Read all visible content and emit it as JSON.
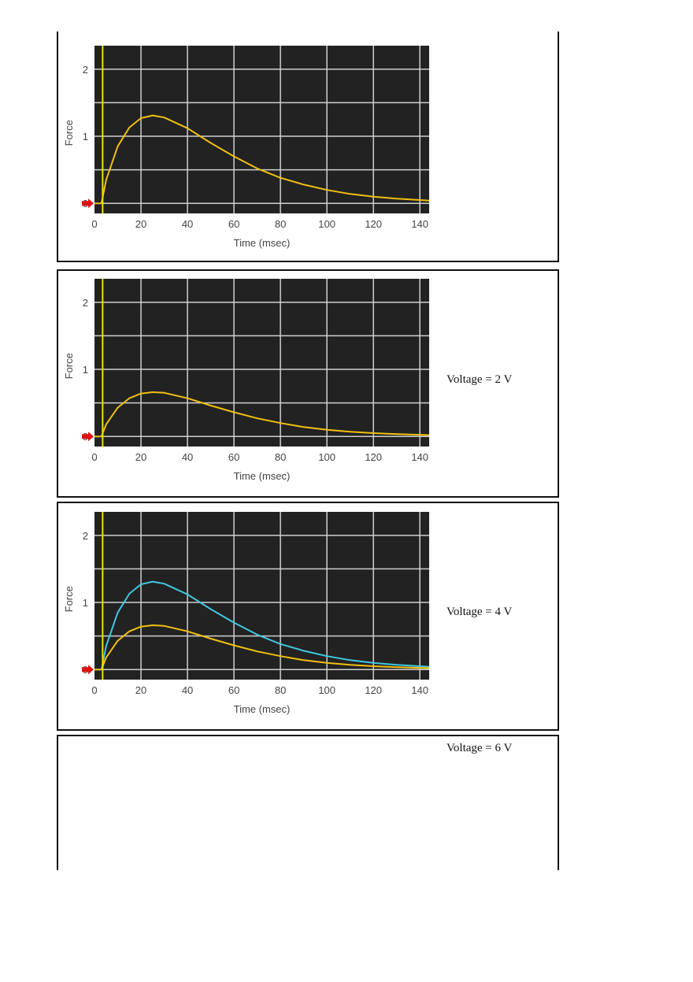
{
  "panels": [
    {
      "voltage_label": ""
    },
    {
      "voltage_label": "Voltage = 2 V"
    },
    {
      "voltage_label": "Voltage = 4 V"
    },
    {
      "voltage_label": "Voltage = 6 V"
    }
  ],
  "colors": {
    "background": "#222222",
    "grid": "#cfcfcf",
    "stimulus_marker": "#f0e000",
    "baseline_arrow": "#e01010",
    "trace_yellow": "#f0c010",
    "trace_cyan": "#40c8e0"
  },
  "chart_data": [
    {
      "type": "line",
      "xlabel": "Time (msec)",
      "ylabel": "Force",
      "xlim": [
        0,
        144
      ],
      "ylim": [
        -0.15,
        2.35
      ],
      "xticks": [
        "0",
        "20",
        "40",
        "60",
        "80",
        "100",
        "120",
        "140"
      ],
      "yticks": [
        "0",
        "1",
        "2"
      ],
      "grid": true,
      "stimulus_time": 3.5,
      "x": [
        0,
        3,
        5,
        10,
        15,
        20,
        25,
        30,
        40,
        50,
        60,
        70,
        80,
        90,
        100,
        110,
        120,
        130,
        140,
        144
      ],
      "series": [
        {
          "color": "#f0c010",
          "values": [
            0,
            0,
            0.35,
            0.85,
            1.13,
            1.27,
            1.31,
            1.28,
            1.12,
            0.9,
            0.7,
            0.52,
            0.38,
            0.28,
            0.2,
            0.14,
            0.1,
            0.07,
            0.05,
            0.04
          ]
        }
      ]
    },
    {
      "type": "line",
      "xlabel": "Time (msec)",
      "ylabel": "Force",
      "xlim": [
        0,
        144
      ],
      "ylim": [
        -0.15,
        2.35
      ],
      "xticks": [
        "0",
        "20",
        "40",
        "60",
        "80",
        "100",
        "120",
        "140"
      ],
      "yticks": [
        "0",
        "1",
        "2"
      ],
      "grid": true,
      "stimulus_time": 3.5,
      "x": [
        0,
        3,
        5,
        10,
        15,
        20,
        25,
        30,
        40,
        50,
        60,
        70,
        80,
        90,
        100,
        110,
        120,
        130,
        140,
        144
      ],
      "series": [
        {
          "color": "#f0c010",
          "values": [
            0,
            0,
            0.18,
            0.43,
            0.57,
            0.64,
            0.66,
            0.65,
            0.57,
            0.46,
            0.36,
            0.27,
            0.2,
            0.14,
            0.1,
            0.07,
            0.05,
            0.035,
            0.025,
            0.02
          ]
        }
      ]
    },
    {
      "type": "line",
      "xlabel": "Time (msec)",
      "ylabel": "Force",
      "xlim": [
        0,
        144
      ],
      "ylim": [
        -0.15,
        2.35
      ],
      "xticks": [
        "0",
        "20",
        "40",
        "60",
        "80",
        "100",
        "120",
        "140"
      ],
      "yticks": [
        "0",
        "1",
        "2"
      ],
      "grid": true,
      "stimulus_time": 3.5,
      "x": [
        0,
        3,
        5,
        10,
        15,
        20,
        25,
        30,
        40,
        50,
        60,
        70,
        80,
        90,
        100,
        110,
        120,
        130,
        140,
        144
      ],
      "series": [
        {
          "color": "#40c8e0",
          "values": [
            0,
            0,
            0.35,
            0.85,
            1.13,
            1.27,
            1.31,
            1.28,
            1.12,
            0.9,
            0.7,
            0.52,
            0.38,
            0.28,
            0.2,
            0.14,
            0.1,
            0.07,
            0.05,
            0.04
          ]
        },
        {
          "color": "#f0c010",
          "values": [
            0,
            0,
            0.18,
            0.43,
            0.57,
            0.64,
            0.66,
            0.65,
            0.57,
            0.46,
            0.36,
            0.27,
            0.2,
            0.14,
            0.1,
            0.07,
            0.05,
            0.035,
            0.025,
            0.02
          ]
        }
      ]
    }
  ]
}
